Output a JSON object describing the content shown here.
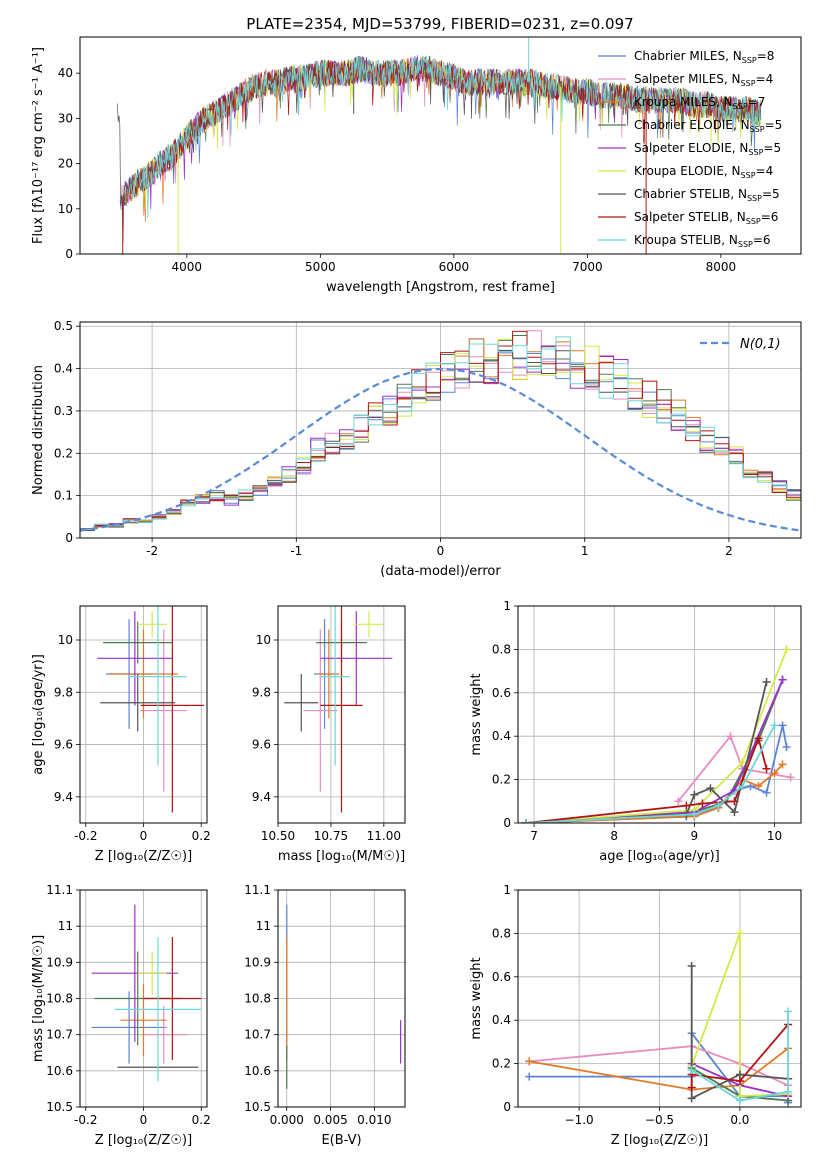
{
  "figure": {
    "title": "PLATE=2354, MJD=53799, FIBERID=0231, z=0.097"
  },
  "colors": {
    "models": [
      "#5b83d6",
      "#e88cc0",
      "#e07a2a",
      "#4d7a4d",
      "#9b30c9",
      "#d4e84a",
      "#555555",
      "#b01515",
      "#6fd6d8"
    ],
    "normal_curve": "#5b8ad6",
    "grid": "#b0b0b0"
  },
  "legend_models": [
    {
      "label": "Chabrier MILES, N",
      "sub": "SSP",
      "suffix": "=8"
    },
    {
      "label": "Salpeter MILES, N",
      "sub": "SSP",
      "suffix": "=4"
    },
    {
      "label": "Kroupa MILES, N",
      "sub": "SSP",
      "suffix": "=7"
    },
    {
      "label": "Chabrier ELODIE, N",
      "sub": "SSP",
      "suffix": "=5"
    },
    {
      "label": "Salpeter ELODIE, N",
      "sub": "SSP",
      "suffix": "=5"
    },
    {
      "label": "Kroupa ELODIE, N",
      "sub": "SSP",
      "suffix": "=4"
    },
    {
      "label": "Chabrier STELIB, N",
      "sub": "SSP",
      "suffix": "=5"
    },
    {
      "label": "Salpeter STELIB, N",
      "sub": "SSP",
      "suffix": "=6"
    },
    {
      "label": "Kroupa STELIB, N",
      "sub": "SSP",
      "suffix": "=6"
    }
  ],
  "chart_data": [
    {
      "id": "spectrum",
      "type": "line",
      "xlabel": "wavelength [Angstrom, rest frame]",
      "ylabel": "Flux [fλ10⁻¹⁷ erg cm⁻² s⁻¹ A⁻¹]",
      "xlim": [
        3200,
        8600
      ],
      "ylim": [
        0,
        48
      ],
      "xticks": [
        4000,
        5000,
        6000,
        7000,
        8000
      ],
      "yticks": [
        0,
        10,
        20,
        30,
        40
      ],
      "grid": false,
      "legend_position": "upper right",
      "envelope": {
        "x": [
          3500,
          3600,
          3700,
          3800,
          3900,
          4000,
          4100,
          4200,
          4300,
          4400,
          4500,
          4600,
          4700,
          4800,
          4900,
          5000,
          5100,
          5200,
          5300,
          5400,
          5500,
          5600,
          5700,
          5800,
          5900,
          6000,
          6100,
          6200,
          6300,
          6400,
          6500,
          6600,
          6700,
          6800,
          6900,
          7000,
          7100,
          7200,
          7300,
          7400,
          7500,
          7600,
          7700,
          7800,
          7900,
          8000,
          8100,
          8200,
          8300
        ],
        "y": [
          12,
          15,
          17,
          20,
          22,
          26,
          29,
          31,
          33,
          35,
          37,
          38,
          38,
          39,
          39,
          40,
          40,
          40,
          41,
          40,
          40,
          40,
          41,
          41,
          40,
          39,
          38,
          38,
          38,
          38,
          38,
          38,
          37,
          37,
          36,
          36,
          35,
          35,
          35,
          34,
          34,
          34,
          34,
          33,
          33,
          32,
          32,
          32,
          31
        ]
      },
      "spikes": [
        {
          "x": 3520,
          "y": 0
        },
        {
          "x": 3935,
          "y": 0
        },
        {
          "x": 6560,
          "y": 48
        },
        {
          "x": 6800,
          "y": 0
        },
        {
          "x": 7440,
          "y": 0
        },
        {
          "x": 5250,
          "y": 31
        }
      ]
    },
    {
      "id": "residuals",
      "type": "histogram",
      "xlabel": "(data-model)/error",
      "ylabel": "Normed distribution",
      "xlim": [
        -2.5,
        2.5
      ],
      "ylim": [
        0,
        0.51
      ],
      "xticks": [
        -2,
        -1,
        0,
        1,
        2
      ],
      "yticks": [
        0.0,
        0.1,
        0.2,
        0.3,
        0.4,
        0.5
      ],
      "grid": true,
      "legend": "N(0,1)",
      "legend_position": "upper right",
      "bin_width": 0.1,
      "bin_start": -2.6,
      "density": [
        0.01,
        0.02,
        0.03,
        0.03,
        0.04,
        0.04,
        0.05,
        0.06,
        0.08,
        0.09,
        0.1,
        0.09,
        0.1,
        0.11,
        0.13,
        0.15,
        0.17,
        0.21,
        0.22,
        0.23,
        0.26,
        0.28,
        0.31,
        0.33,
        0.35,
        0.37,
        0.39,
        0.41,
        0.42,
        0.41,
        0.42,
        0.43,
        0.43,
        0.42,
        0.42,
        0.41,
        0.4,
        0.38,
        0.37,
        0.35,
        0.33,
        0.31,
        0.29,
        0.26,
        0.23,
        0.21,
        0.19,
        0.16,
        0.14,
        0.12,
        0.1,
        0.09,
        0.08,
        0.07,
        0.05,
        0.05,
        0.04,
        0.04,
        0.03,
        0.03,
        0.02,
        0.02
      ]
    },
    {
      "id": "age-vs-z",
      "type": "scatter",
      "xlabel": "Z [log₁₀(Z/Z☉)]",
      "ylabel": "age [log₁₀(age/yr)]",
      "xlim": [
        -0.22,
        0.22
      ],
      "ylim": [
        9.3,
        10.13
      ],
      "xticks": [
        -0.2,
        0.0,
        0.2
      ],
      "yticks": [
        9.4,
        9.6,
        9.8,
        10.0
      ],
      "grid": true,
      "points": [
        {
          "x": -0.05,
          "y": 9.87,
          "xerr": 0.08,
          "yerr": 0.21
        },
        {
          "x": 0.07,
          "y": 9.73,
          "xerr": 0.08,
          "yerr": 0.31
        },
        {
          "x": 0.0,
          "y": 9.87,
          "xerr": 0.12,
          "yerr": 0.17
        },
        {
          "x": -0.02,
          "y": 9.99,
          "xerr": 0.12,
          "yerr": 0.08
        },
        {
          "x": -0.03,
          "y": 9.93,
          "xerr": 0.13,
          "yerr": 0.18
        },
        {
          "x": 0.03,
          "y": 10.06,
          "xerr": 0.05,
          "yerr": 0.05
        },
        {
          "x": -0.02,
          "y": 9.76,
          "xerr": 0.13,
          "yerr": 0.11
        },
        {
          "x": 0.1,
          "y": 9.75,
          "xerr": 0.11,
          "yerr": 0.41
        },
        {
          "x": 0.05,
          "y": 9.86,
          "xerr": 0.1,
          "yerr": 0.34
        }
      ]
    },
    {
      "id": "age-vs-mass",
      "type": "scatter",
      "xlabel": "mass [log₁₀(M/M☉)]",
      "ylabel": "",
      "xlim": [
        10.5,
        11.1
      ],
      "ylim": [
        9.3,
        10.13
      ],
      "xticks": [
        10.5,
        10.75,
        11.0
      ],
      "xticklabels": [
        "10.50",
        "10.75",
        "11.00"
      ],
      "yticks": [
        9.4,
        9.6,
        9.8,
        10.0
      ],
      "grid": true,
      "points": [
        {
          "x": 10.72,
          "y": 9.87,
          "xerr": 0.05,
          "yerr": 0.21
        },
        {
          "x": 10.7,
          "y": 9.73,
          "xerr": 0.08,
          "yerr": 0.31
        },
        {
          "x": 10.74,
          "y": 9.87,
          "xerr": 0.05,
          "yerr": 0.17
        },
        {
          "x": 10.8,
          "y": 9.99,
          "xerr": 0.12,
          "yerr": 0.08
        },
        {
          "x": 10.87,
          "y": 9.93,
          "xerr": 0.17,
          "yerr": 0.18
        },
        {
          "x": 10.93,
          "y": 10.06,
          "xerr": 0.07,
          "yerr": 0.05
        },
        {
          "x": 10.61,
          "y": 9.76,
          "xerr": 0.08,
          "yerr": 0.11
        },
        {
          "x": 10.8,
          "y": 9.75,
          "xerr": 0.1,
          "yerr": 0.41
        },
        {
          "x": 10.77,
          "y": 9.86,
          "xerr": 0.07,
          "yerr": 0.34
        }
      ]
    },
    {
      "id": "weight-vs-age",
      "type": "line",
      "xlabel": "age [log₁₀(age/yr)]",
      "ylabel": "mass weight",
      "xlim": [
        6.8,
        10.33
      ],
      "ylim": [
        0.0,
        1.0
      ],
      "xticks": [
        7,
        8,
        9,
        10
      ],
      "yticks": [
        0.0,
        0.2,
        0.4,
        0.6,
        0.8,
        1.0
      ],
      "grid": true,
      "series": [
        {
          "x": [
            6.9,
            8.9,
            9.3,
            9.5,
            9.7,
            9.9,
            10.1,
            10.15
          ],
          "y": [
            0.0,
            0.03,
            0.07,
            0.15,
            0.17,
            0.14,
            0.45,
            0.35
          ]
        },
        {
          "x": [
            8.8,
            9.45,
            9.6,
            10.2
          ],
          "y": [
            0.1,
            0.4,
            0.25,
            0.21
          ]
        },
        {
          "x": [
            6.9,
            9.0,
            9.3,
            9.6,
            9.8,
            10.0,
            10.1
          ],
          "y": [
            0.0,
            0.03,
            0.07,
            0.2,
            0.17,
            0.23,
            0.27
          ]
        },
        {
          "x": [
            6.9,
            9.0,
            9.4,
            9.8,
            10.1
          ],
          "y": [
            0.0,
            0.05,
            0.1,
            0.38,
            0.66
          ]
        },
        {
          "x": [
            6.9,
            9.0,
            9.5,
            10.1
          ],
          "y": [
            0.0,
            0.05,
            0.15,
            0.66
          ]
        },
        {
          "x": [
            6.9,
            9.0,
            9.6,
            10.15
          ],
          "y": [
            0.0,
            0.06,
            0.28,
            0.8
          ]
        },
        {
          "x": [
            6.9,
            8.9,
            9.0,
            9.2,
            9.5,
            9.9
          ],
          "y": [
            0.0,
            0.04,
            0.13,
            0.16,
            0.05,
            0.65
          ]
        },
        {
          "x": [
            6.9,
            8.9,
            9.1,
            9.5,
            9.8,
            9.9
          ],
          "y": [
            0.0,
            0.08,
            0.09,
            0.1,
            0.39,
            0.25
          ]
        },
        {
          "x": [
            6.9,
            9.0,
            9.3,
            9.6,
            10.0
          ],
          "y": [
            0.0,
            0.04,
            0.08,
            0.17,
            0.45
          ]
        }
      ]
    },
    {
      "id": "mass-vs-z",
      "type": "scatter",
      "xlabel": "Z [log₁₀(Z/Z☉)]",
      "ylabel": "mass [log₁₀(M/M☉)]",
      "xlim": [
        -0.22,
        0.22
      ],
      "ylim": [
        10.5,
        11.1
      ],
      "xticks": [
        -0.2,
        0.0,
        0.2
      ],
      "yticks": [
        10.5,
        10.6,
        10.7,
        10.8,
        10.9,
        11.0,
        11.1
      ],
      "grid": true,
      "points": [
        {
          "x": -0.05,
          "y": 10.72,
          "xerr": 0.13,
          "yerr": 0.1
        },
        {
          "x": 0.07,
          "y": 10.7,
          "xerr": 0.08,
          "yerr": 0.08
        },
        {
          "x": 0.0,
          "y": 10.74,
          "xerr": 0.08,
          "yerr": 0.1
        },
        {
          "x": -0.02,
          "y": 10.8,
          "xerr": 0.15,
          "yerr": 0.13
        },
        {
          "x": -0.03,
          "y": 10.87,
          "xerr": 0.15,
          "yerr": 0.19
        },
        {
          "x": 0.03,
          "y": 10.87,
          "xerr": 0.05,
          "yerr": 0.06
        },
        {
          "x": 0.05,
          "y": 10.61,
          "xerr": 0.14,
          "yerr": 0.0
        },
        {
          "x": 0.1,
          "y": 10.8,
          "xerr": 0.1,
          "yerr": 0.17
        },
        {
          "x": 0.05,
          "y": 10.77,
          "xerr": 0.15,
          "yerr": 0.2
        }
      ]
    },
    {
      "id": "mass-vs-ebv",
      "type": "scatter",
      "xlabel": "E(B-V)",
      "ylabel": "",
      "xlim": [
        -0.001,
        0.0135
      ],
      "ylim": [
        10.5,
        11.1
      ],
      "xticks": [
        0.0,
        0.005,
        0.01
      ],
      "xticklabels": [
        "0.000",
        "0.005",
        "0.010"
      ],
      "yticks": [
        10.5,
        10.6,
        10.7,
        10.8,
        10.9,
        11.0,
        11.1
      ],
      "grid": true,
      "points": [
        {
          "x": 0.0,
          "y": 10.87,
          "xerr": 0,
          "yerr": 0.19
        },
        {
          "x": 0.0,
          "y": 10.87,
          "xerr": 0,
          "yerr": 0.06
        },
        {
          "x": 0.0,
          "y": 10.8,
          "xerr": 0,
          "yerr": 0.17
        },
        {
          "x": 0.0,
          "y": 10.61,
          "xerr": 0,
          "yerr": 0.06
        },
        {
          "x": 0.013,
          "y": 10.68,
          "xerr": 0,
          "yerr": 0.06
        }
      ]
    },
    {
      "id": "weight-vs-z",
      "type": "line",
      "xlabel": "Z [log₁₀(Z/Z☉)]",
      "ylabel": "mass weight",
      "xlim": [
        -1.38,
        0.38
      ],
      "ylim": [
        0.0,
        1.0
      ],
      "xticks": [
        -1.0,
        -0.5,
        0.0
      ],
      "xticklabels": [
        "−1.0",
        "−0.5",
        "0.0"
      ],
      "yticks": [
        0.0,
        0.2,
        0.4,
        0.6,
        0.8,
        1.0
      ],
      "grid": true,
      "series": [
        {
          "x": [
            -1.31,
            -0.3,
            -0.3,
            0.0,
            0.3,
            0.3
          ],
          "y": [
            0.14,
            0.14,
            0.34,
            0.05,
            0.05,
            0.02
          ]
        },
        {
          "x": [
            -1.31,
            -0.3,
            0.0,
            0.3
          ],
          "y": [
            0.21,
            0.28,
            0.2,
            0.1
          ]
        },
        {
          "x": [
            -1.31,
            -0.3,
            0.0,
            0.3
          ],
          "y": [
            0.21,
            0.08,
            0.1,
            0.27
          ]
        },
        {
          "x": [
            -0.3,
            0.0,
            0.3
          ],
          "y": [
            0.18,
            0.05,
            0.03
          ]
        },
        {
          "x": [
            -0.3,
            0.0,
            0.3
          ],
          "y": [
            0.2,
            0.1,
            0.05
          ]
        },
        {
          "x": [
            -0.3,
            0.0,
            0.0,
            0.3
          ],
          "y": [
            0.19,
            0.8,
            0.05,
            0.06
          ]
        },
        {
          "x": [
            -0.3,
            -0.3,
            0.0,
            0.3
          ],
          "y": [
            0.65,
            0.04,
            0.15,
            0.13
          ]
        },
        {
          "x": [
            -0.3,
            -0.3,
            0.0,
            0.3
          ],
          "y": [
            0.09,
            0.15,
            0.12,
            0.38
          ]
        },
        {
          "x": [
            -0.3,
            0.0,
            0.3,
            0.3
          ],
          "y": [
            0.17,
            0.03,
            0.07,
            0.44
          ]
        }
      ]
    }
  ]
}
